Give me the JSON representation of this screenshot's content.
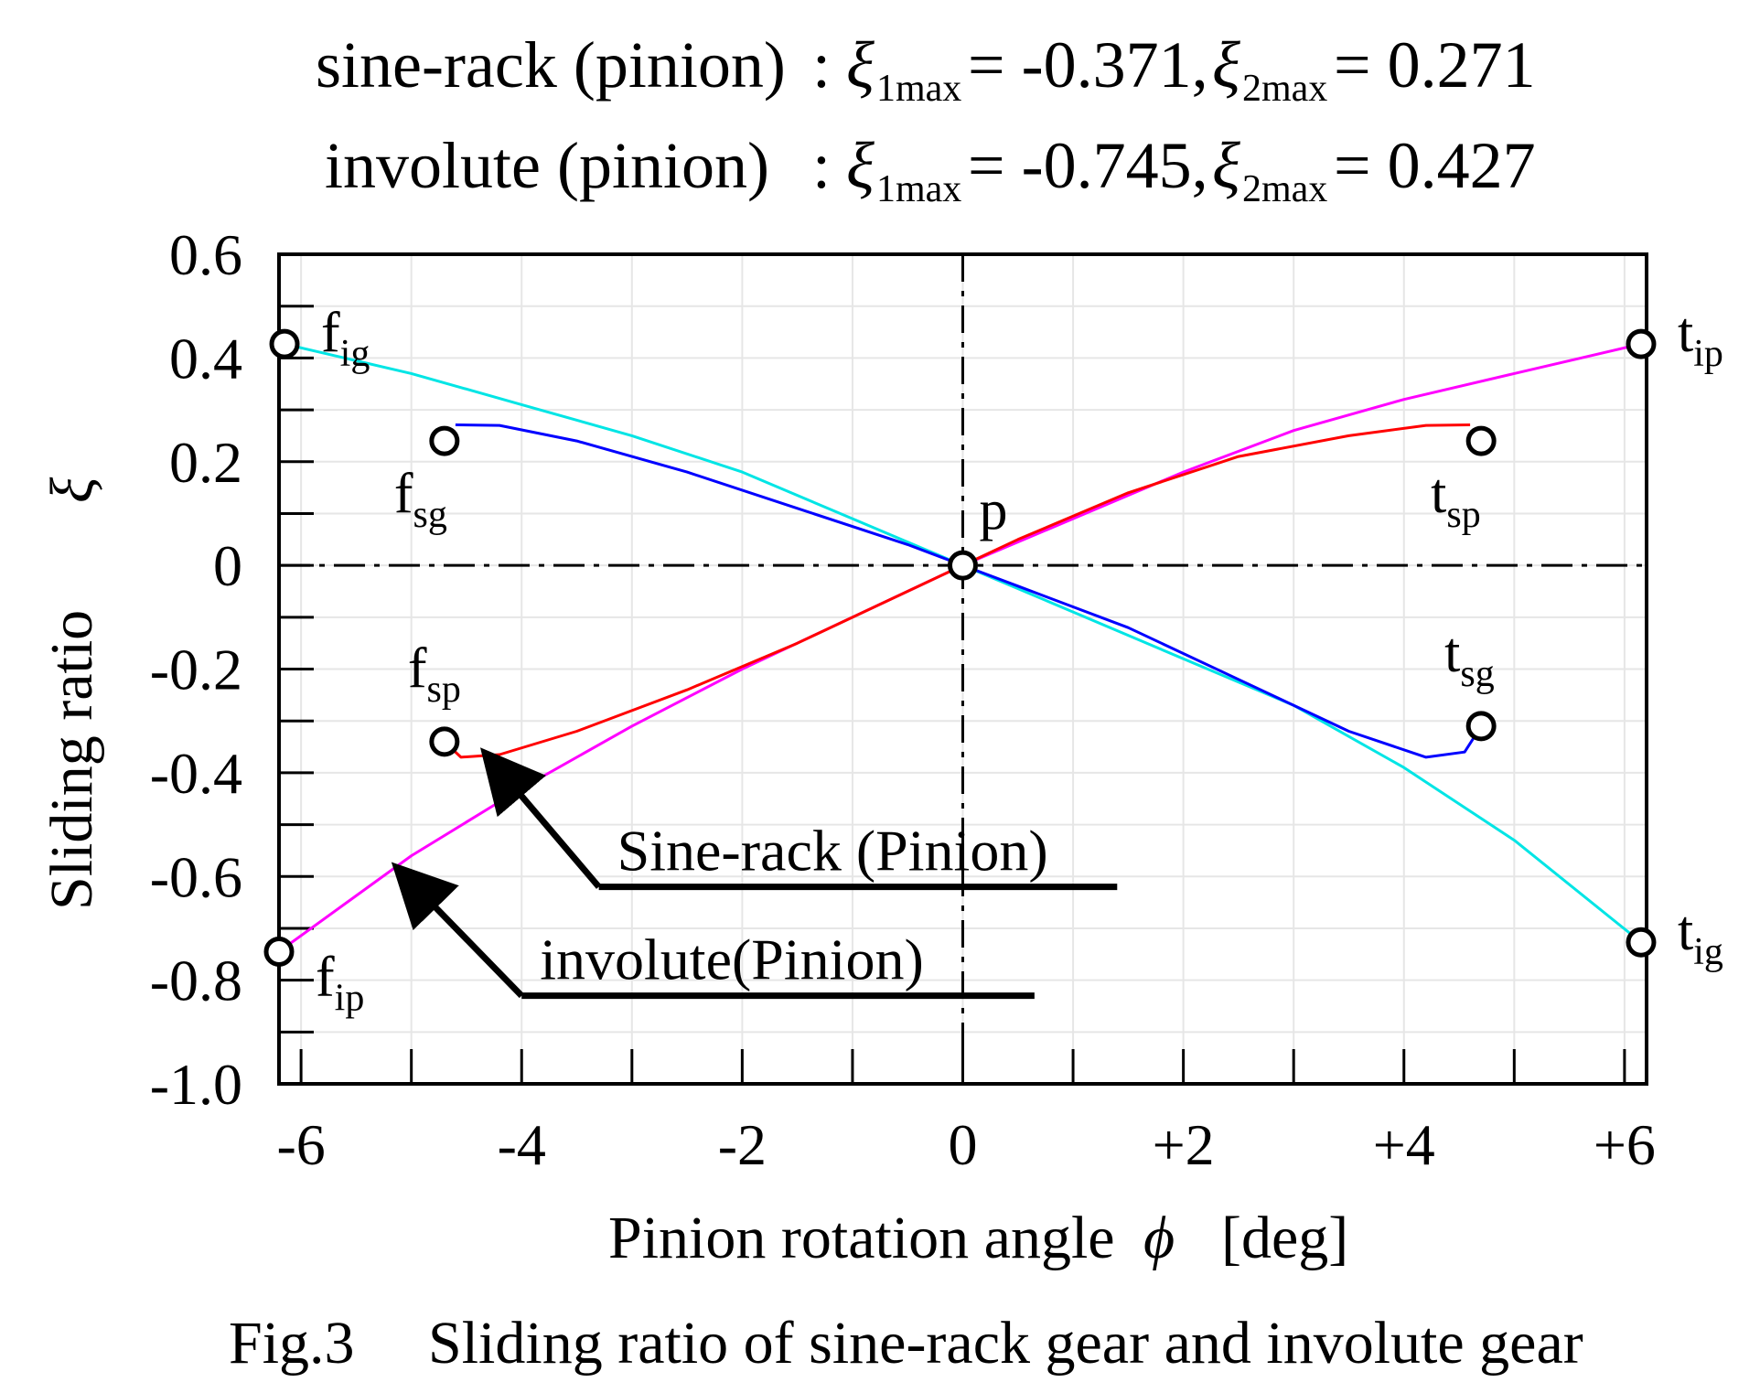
{
  "header": {
    "lines": [
      {
        "label": "sine-rack (pinion)",
        "sep": ":",
        "x1_sym": "ξ",
        "x1_sub": "1max",
        "x1_val": "= -0.371,",
        "x2_sym": "ξ",
        "x2_sub": "2max",
        "x2_val": "= 0.271"
      },
      {
        "label": "involute (pinion)",
        "sep": ":",
        "x1_sym": "ξ",
        "x1_sub": "1max",
        "x1_val": "= -0.745,",
        "x2_sym": "ξ",
        "x2_sub": "2max",
        "x2_val": "= 0.427"
      }
    ]
  },
  "caption": {
    "fig": "Fig.3",
    "text": "Sliding ratio of sine-rack gear and involute gear"
  },
  "chart_data": {
    "type": "line",
    "xlabel": "Pinion rotation angle",
    "xlabel_symbol": "ϕ",
    "xlabel_unit": "[deg]",
    "ylabel": "Sliding ratio",
    "ylabel_symbol": "ξ",
    "xlim": [
      -6.2,
      6.2
    ],
    "ylim": [
      -1.0,
      0.6
    ],
    "xticks": [
      {
        "v": -6,
        "label": "-6"
      },
      {
        "v": -4,
        "label": "-4"
      },
      {
        "v": -2,
        "label": "-2"
      },
      {
        "v": 0,
        "label": "0"
      },
      {
        "v": 2,
        "label": "+2"
      },
      {
        "v": 4,
        "label": "+4"
      },
      {
        "v": 6,
        "label": "+6"
      }
    ],
    "yticks": [
      {
        "v": 0.6,
        "label": "0.6"
      },
      {
        "v": 0.4,
        "label": "0.4"
      },
      {
        "v": 0.2,
        "label": "0.2"
      },
      {
        "v": 0,
        "label": "0"
      },
      {
        "v": -0.2,
        "label": "-0.2"
      },
      {
        "v": -0.4,
        "label": "-0.4"
      },
      {
        "v": -0.6,
        "label": "-0.6"
      },
      {
        "v": -0.8,
        "label": "-0.8"
      },
      {
        "v": -1.0,
        "label": "-1.0"
      }
    ],
    "series": [
      {
        "color": "#00e5e5",
        "x": [
          -6.15,
          -5,
          -4,
          -3,
          -2,
          -1,
          0,
          1,
          2,
          3,
          4,
          5,
          6.15
        ],
        "y": [
          0.427,
          0.37,
          0.31,
          0.25,
          0.18,
          0.09,
          0,
          -0.09,
          -0.18,
          -0.27,
          -0.39,
          -0.53,
          -0.727
        ]
      },
      {
        "color": "#ff00ff",
        "x": [
          -6.2,
          -5,
          -4,
          -3,
          -2,
          -1,
          0,
          1,
          2,
          3,
          4,
          5,
          6.15
        ],
        "y": [
          -0.745,
          -0.56,
          -0.43,
          -0.31,
          -0.2,
          -0.1,
          0,
          0.09,
          0.18,
          0.26,
          0.32,
          0.37,
          0.427
        ]
      },
      {
        "color": "#0000ff",
        "x": [
          -4.6,
          -4.2,
          -3.5,
          -2.5,
          -1.5,
          -0.5,
          0,
          0.5,
          1.5,
          2.5,
          3.5,
          4.2,
          4.55,
          4.7
        ],
        "y": [
          0.271,
          0.27,
          0.24,
          0.18,
          0.11,
          0.04,
          0,
          -0.04,
          -0.12,
          -0.22,
          -0.32,
          -0.37,
          -0.36,
          -0.31
        ]
      },
      {
        "color": "#ff0000",
        "x": [
          -4.7,
          -4.55,
          -4.2,
          -3.5,
          -2.5,
          -1.5,
          -0.5,
          0,
          0.5,
          1.5,
          2.5,
          3.5,
          4.2,
          4.6
        ],
        "y": [
          -0.34,
          -0.37,
          -0.365,
          -0.32,
          -0.24,
          -0.15,
          -0.05,
          0,
          0.05,
          0.14,
          0.21,
          0.25,
          0.27,
          0.271
        ]
      }
    ],
    "points": [
      {
        "x": -6.15,
        "y": 0.427,
        "name": "f",
        "sub": "ig",
        "pos": "right"
      },
      {
        "x": 6.15,
        "y": 0.427,
        "name": "t",
        "sub": "ip",
        "pos": "right"
      },
      {
        "x": -4.7,
        "y": 0.24,
        "name": "f",
        "sub": "sg",
        "pos": "below"
      },
      {
        "x": 4.7,
        "y": 0.24,
        "name": "t",
        "sub": "sp",
        "pos": "below"
      },
      {
        "x": 0,
        "y": 0,
        "name": "p",
        "sub": "",
        "pos": "aboveright"
      },
      {
        "x": -4.7,
        "y": -0.34,
        "name": "f",
        "sub": "sp",
        "pos": "above"
      },
      {
        "x": 4.7,
        "y": -0.31,
        "name": "t",
        "sub": "sg",
        "pos": "above"
      },
      {
        "x": -6.2,
        "y": -0.745,
        "name": "f",
        "sub": "ip",
        "pos": "right"
      },
      {
        "x": 6.15,
        "y": -0.727,
        "name": "t",
        "sub": "ig",
        "pos": "right"
      }
    ],
    "annotations": [
      {
        "text": "Sine-rack (Pinion)",
        "target_x": -4.3,
        "target_y": -0.37,
        "elbow_x": -3.3,
        "elbow_y": -0.62,
        "end_x": 1.4,
        "end_y": -0.62
      },
      {
        "text": "involute(Pinion)",
        "target_x": -5.1,
        "target_y": -0.59,
        "elbow_x": -4.0,
        "elbow_y": -0.83,
        "end_x": 0.65,
        "end_y": -0.83
      }
    ]
  }
}
